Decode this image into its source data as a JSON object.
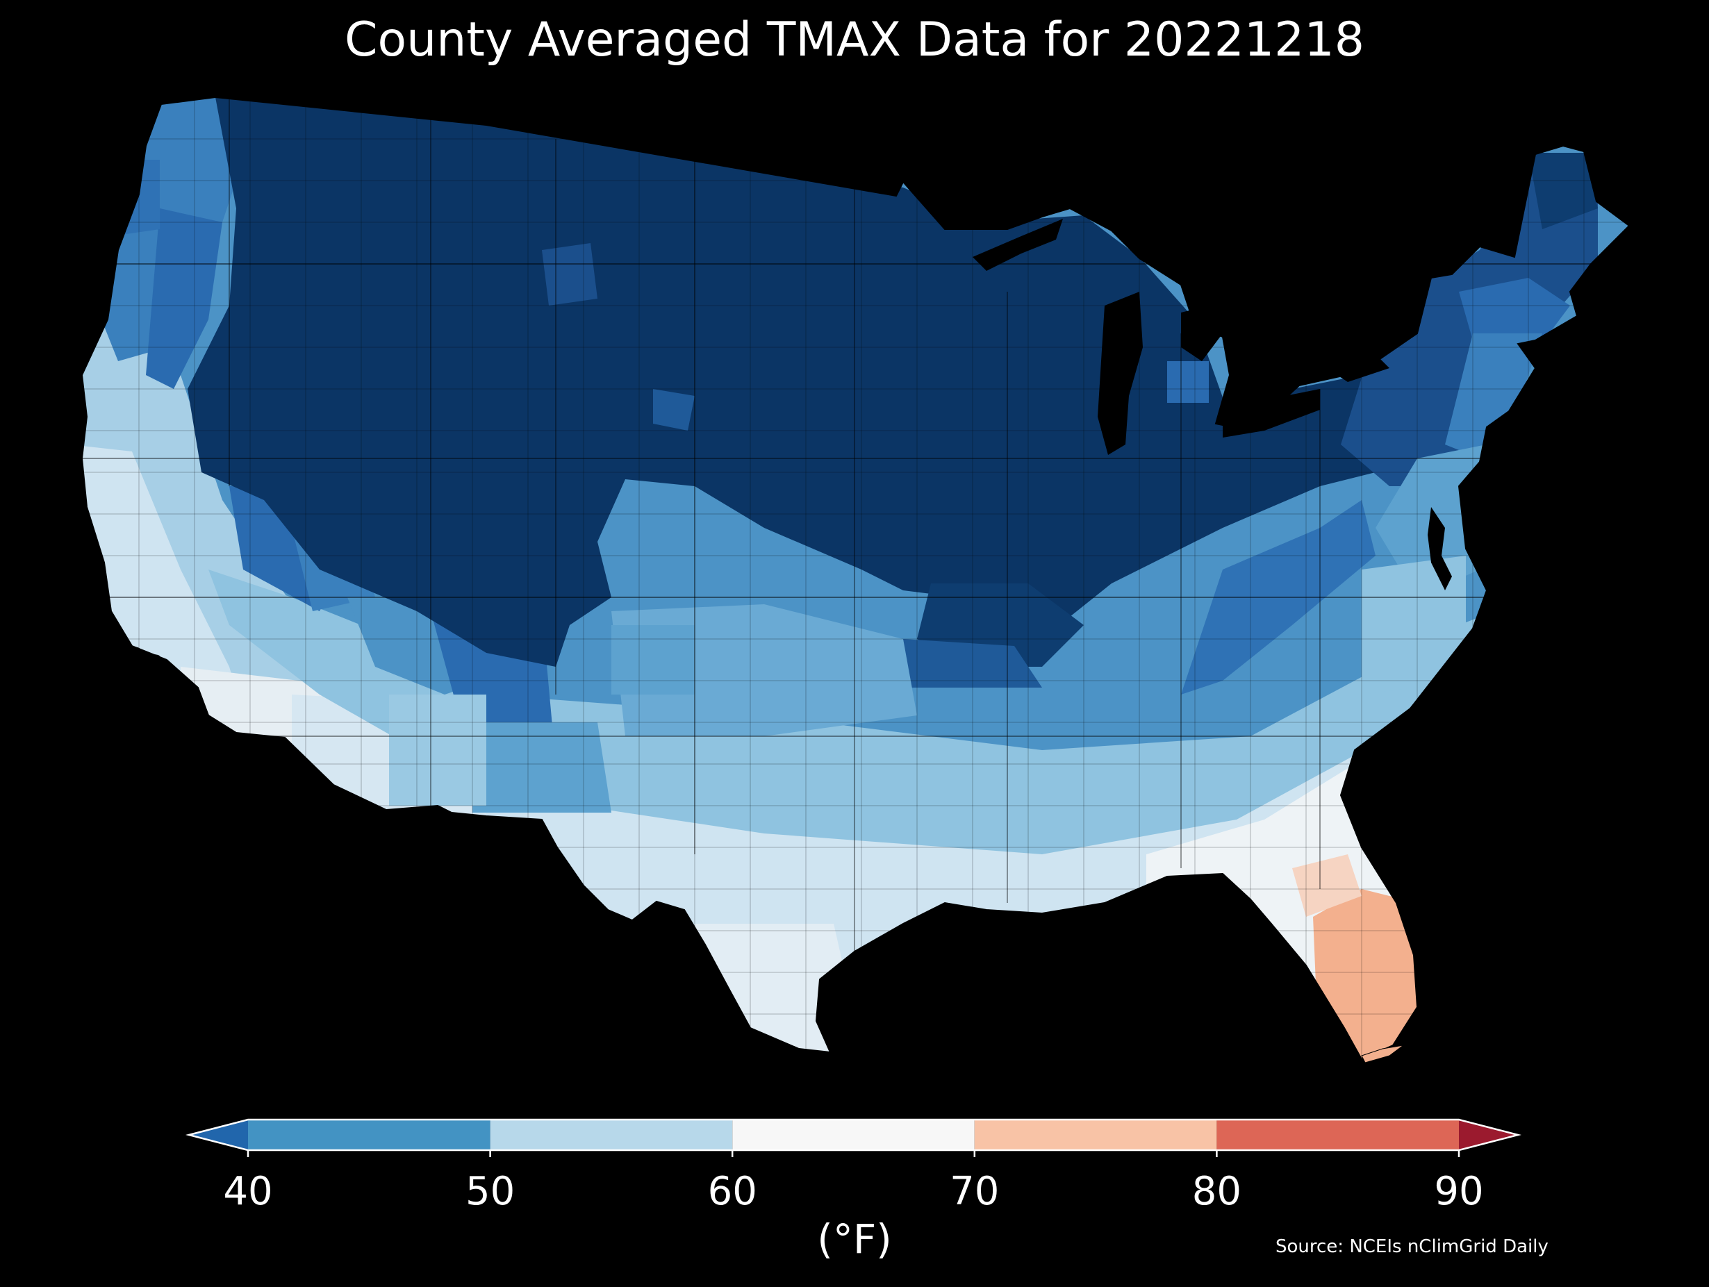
{
  "title": "County Averaged TMAX Data for 20221218",
  "source": "Source: NCEIs nClimGrid Daily",
  "colorbar": {
    "unit_label": "(°F)",
    "ticks": [
      "40",
      "50",
      "60",
      "70",
      "80",
      "90"
    ],
    "bins": [
      {
        "range": [
          40,
          50
        ],
        "color": "#4393c3"
      },
      {
        "range": [
          50,
          60
        ],
        "color": "#b7d8ea"
      },
      {
        "range": [
          60,
          70
        ],
        "color": "#f7f7f7"
      },
      {
        "range": [
          70,
          80
        ],
        "color": "#f8c3a6"
      },
      {
        "range": [
          80,
          90
        ],
        "color": "#dd6656"
      }
    ],
    "extend_low_color": "#2166ac",
    "extend_high_color": "#9b1a2e"
  },
  "map": {
    "projection": "Albers equal-area, contiguous United States",
    "region_colors": {
      "very_cold": "#0b3565",
      "cold": "#2a6bb0",
      "cool": "#4c93c6",
      "mild": "#8fc3e0",
      "pale": "#cfe4f1",
      "neutral": "#eef3f6",
      "warm": "#f3b08e"
    }
  }
}
